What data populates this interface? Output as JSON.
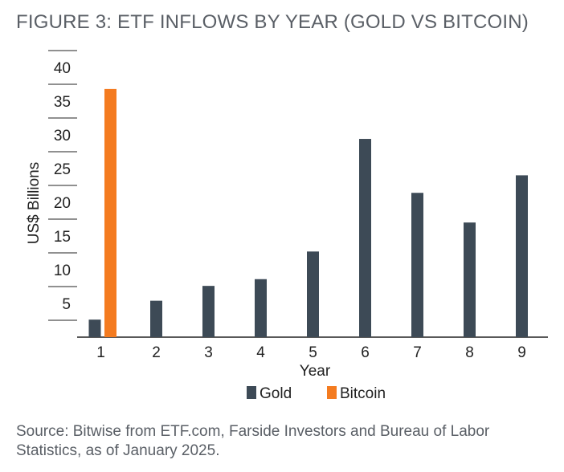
{
  "title": "FIGURE 3: ETF INFLOWS BY YEAR (GOLD VS BITCOIN)",
  "source": "Source: Bitwise from ETF.com, Farside Investors and Bureau of Labor Statistics, as of January 2025.",
  "colors": {
    "gold": "#3d4a56",
    "bitcoin": "#f47b20",
    "grid": "#222222"
  },
  "chart_data": {
    "type": "bar",
    "title": "FIGURE 3: ETF INFLOWS BY YEAR (GOLD VS BITCOIN)",
    "xlabel": "Year",
    "ylabel": "US$ Billions",
    "categories": [
      "1",
      "2",
      "3",
      "4",
      "5",
      "6",
      "7",
      "8",
      "9"
    ],
    "yticks": [
      5,
      10,
      15,
      20,
      25,
      30,
      35,
      40
    ],
    "ylim": [
      0,
      40
    ],
    "grid": "horizontal",
    "legend_position": "bottom",
    "series": [
      {
        "name": "Gold",
        "values": [
          2.6,
          5.4,
          7.6,
          8.6,
          12.7,
          29.4,
          21.4,
          17.0,
          24.0
        ]
      },
      {
        "name": "Bitcoin",
        "values": [
          36.8,
          null,
          null,
          null,
          null,
          null,
          null,
          null,
          null
        ]
      }
    ]
  }
}
